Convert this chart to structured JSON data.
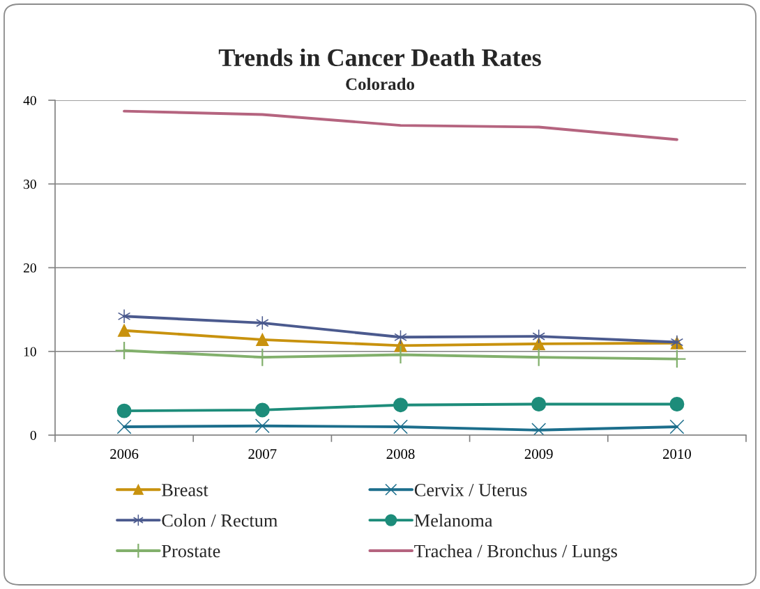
{
  "chart_data": {
    "type": "line",
    "title": "Trends in Cancer Death Rates",
    "subtitle": "Colorado",
    "categories": [
      "2006",
      "2007",
      "2008",
      "2009",
      "2010"
    ],
    "ylim": [
      0,
      40
    ],
    "yticks": [
      0,
      10,
      20,
      30,
      40
    ],
    "grid": "y",
    "legend": "bottom",
    "line_style": "solid",
    "series": [
      {
        "name": "Breast",
        "color": "#c8920e",
        "marker": "triangle",
        "values": [
          12.5,
          11.4,
          10.7,
          10.9,
          11.0
        ]
      },
      {
        "name": "Cervix / Uterus",
        "color": "#1c6e8c",
        "marker": "cross",
        "values": [
          1.0,
          1.1,
          1.0,
          0.6,
          1.0
        ]
      },
      {
        "name": "Colon / Rectum",
        "color": "#4b5a8e",
        "marker": "cross",
        "values": [
          14.2,
          13.4,
          11.7,
          11.8,
          11.1
        ]
      },
      {
        "name": "Melanoma",
        "color": "#1d8c7a",
        "marker": "circle",
        "values": [
          2.9,
          3.0,
          3.6,
          3.7,
          3.7
        ]
      },
      {
        "name": "Prostate",
        "color": "#82b06c",
        "marker": "cross",
        "values": [
          10.1,
          9.3,
          9.6,
          9.3,
          9.1
        ]
      },
      {
        "name": "Trachea / Bronchus / Lungs",
        "color": "#b5647f",
        "marker": "none",
        "values": [
          38.7,
          38.3,
          37.0,
          36.8,
          35.3
        ]
      }
    ]
  }
}
